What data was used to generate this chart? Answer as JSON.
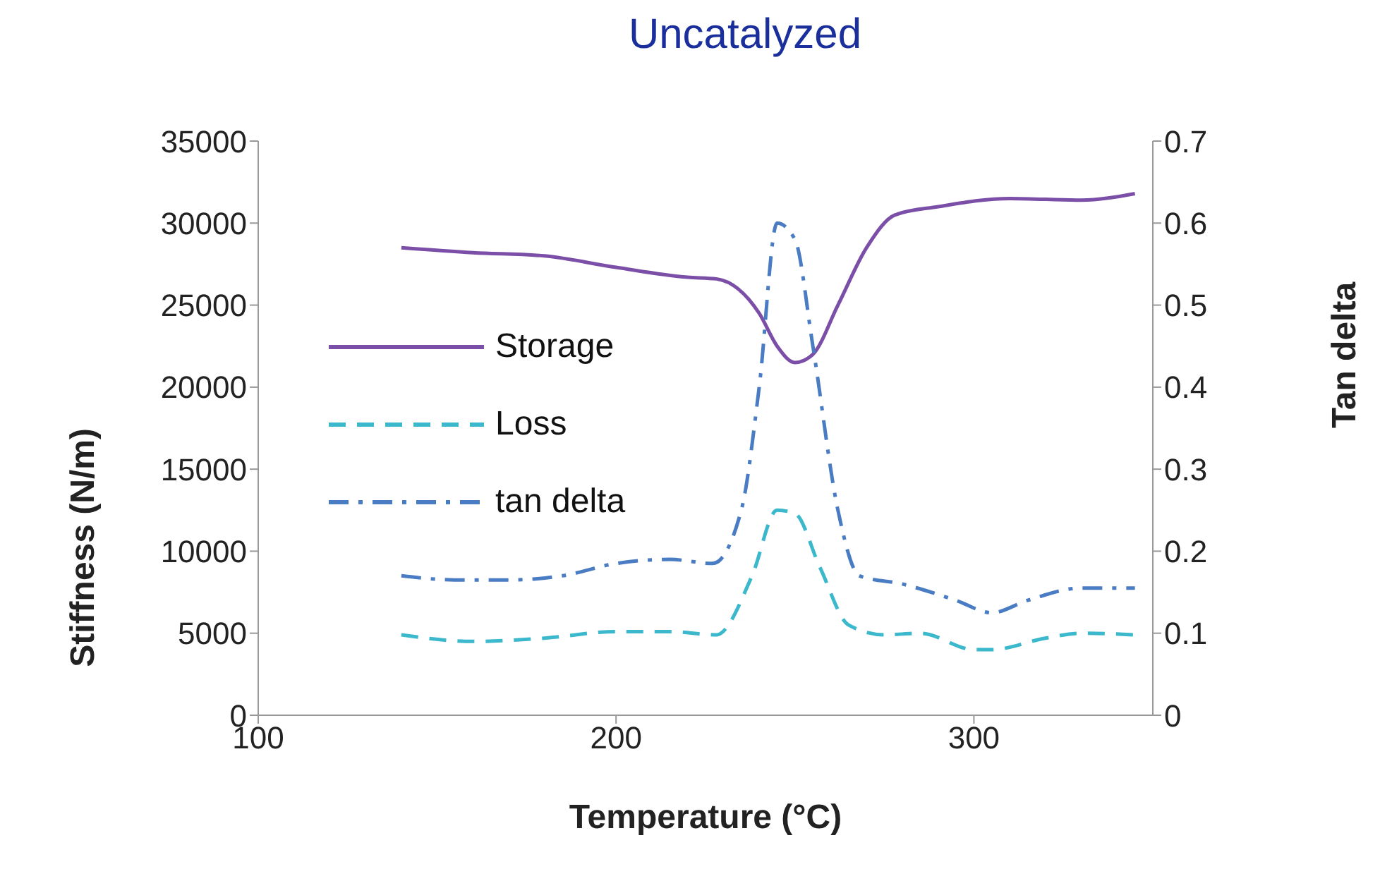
{
  "chart_data": {
    "type": "line",
    "title": "Uncatalyzed",
    "xlabel": "Temperature (°C)",
    "ylabel": "Stiffness (N/m)",
    "y2label": "Tan delta",
    "xlim": [
      100,
      350
    ],
    "xticks": [
      100,
      200,
      300
    ],
    "ylim": [
      0,
      35000
    ],
    "yticks": [
      0,
      5000,
      10000,
      15000,
      20000,
      25000,
      30000,
      35000
    ],
    "y2lim": [
      0,
      0.7
    ],
    "y2ticks": [
      0,
      0.1,
      0.2,
      0.3,
      0.4,
      0.5,
      0.6,
      0.7
    ],
    "grid": false,
    "legend": "left",
    "marker": "none",
    "series": [
      {
        "name": "Storage",
        "color": "#7b4fa8",
        "line_style": "solid",
        "x": [
          140,
          160,
          180,
          200,
          220,
          228,
          240,
          245,
          250,
          255,
          262,
          270,
          278,
          290,
          310,
          330,
          345
        ],
        "values": [
          28500,
          28200,
          28000,
          27300,
          26700,
          26600,
          24500,
          22500,
          21500,
          22000,
          25000,
          28500,
          30500,
          31000,
          31500,
          31400,
          31800
        ]
      },
      {
        "name": "Loss",
        "color": "#3bb8cc",
        "line_style": "dashed",
        "x": [
          140,
          160,
          180,
          200,
          215,
          228,
          238,
          245,
          250,
          257,
          265,
          275,
          285,
          300,
          305,
          320,
          330,
          345
        ],
        "values": [
          4900,
          4500,
          4700,
          5100,
          5100,
          4900,
          8500,
          12500,
          12300,
          9000,
          5500,
          4900,
          5000,
          4000,
          4000,
          4700,
          5000,
          4900
        ]
      },
      {
        "name": "tan delta",
        "color": "#4a7cc4",
        "line_style": "dashdot",
        "axis": "y2",
        "x": [
          140,
          155,
          170,
          185,
          200,
          215,
          227,
          235,
          240,
          245,
          250,
          255,
          262,
          268,
          280,
          295,
          305,
          315,
          330,
          345
        ],
        "values": [
          0.17,
          0.165,
          0.165,
          0.17,
          0.185,
          0.19,
          0.185,
          0.25,
          0.4,
          0.6,
          0.58,
          0.45,
          0.25,
          0.17,
          0.16,
          0.14,
          0.125,
          0.14,
          0.155,
          0.155
        ]
      }
    ]
  }
}
